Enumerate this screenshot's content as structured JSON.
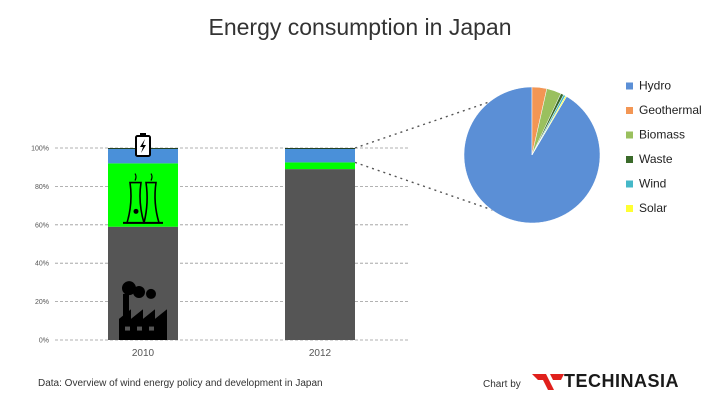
{
  "title": "Energy consumption in Japan",
  "source": "Data: Overview of wind energy policy and development in Japan",
  "credit": {
    "chart_by": "Chart by",
    "brand": "TECHINASIA"
  },
  "chart_data": [
    {
      "type": "bar",
      "stacked": true,
      "categories": [
        "2010",
        "2012"
      ],
      "y_ticks": [
        "0%",
        "20%",
        "40%",
        "60%",
        "80%",
        "100%"
      ],
      "ylim": [
        0,
        100
      ],
      "grid": true,
      "series": [
        {
          "values": [
            59,
            89
          ],
          "color": "#555555",
          "icon": "factory-icon"
        },
        {
          "values": [
            33,
            3.5
          ],
          "color": "#00ff00",
          "icon": "nuclear-plant-icon"
        },
        {
          "values": [
            7.5,
            7
          ],
          "color": "#4a90d9",
          "icon": "battery-icon"
        },
        {
          "values": [
            0.5,
            0.5
          ],
          "color": "#1a3a1a"
        }
      ]
    },
    {
      "type": "pie",
      "series": [
        {
          "name": "Hydro",
          "value": 91.5,
          "color": "#5b8fd6"
        },
        {
          "name": "Geothermal",
          "value": 3.5,
          "color": "#f39654"
        },
        {
          "name": "Biomass",
          "value": 3.5,
          "color": "#9ac05e"
        },
        {
          "name": "Waste",
          "value": 0.7,
          "color": "#3a6a2a"
        },
        {
          "name": "Wind",
          "value": 0.5,
          "color": "#45b8c8"
        },
        {
          "name": "Solar",
          "value": 0.3,
          "color": "#ffff33"
        }
      ],
      "legend": "right"
    }
  ],
  "colors": {
    "brand_red": "#e0201c"
  }
}
